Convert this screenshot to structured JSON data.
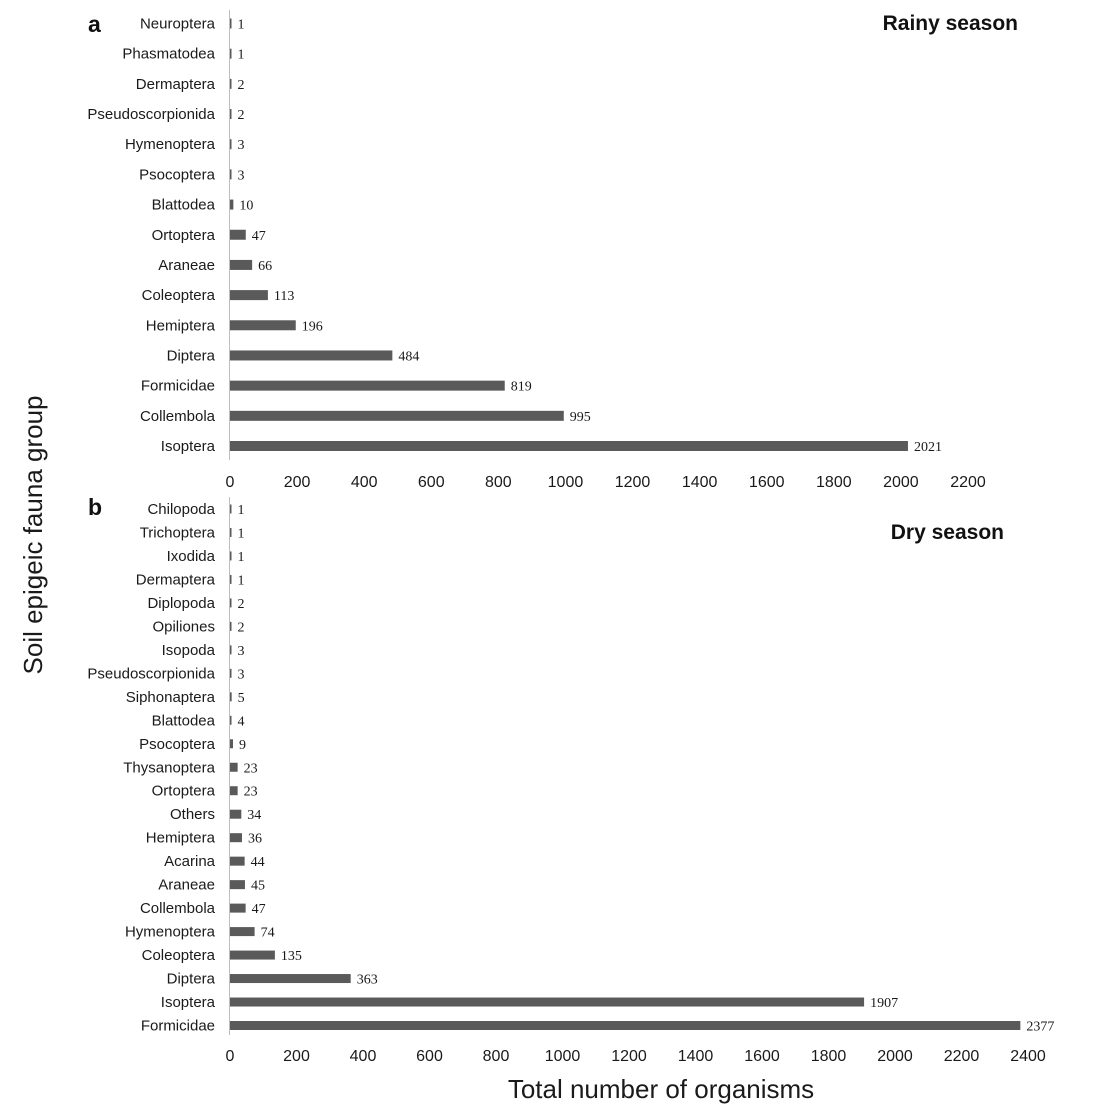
{
  "colors": {
    "bar": "#5a5a5a",
    "axis": "#bdbdbd",
    "text": "#1a1a1a"
  },
  "ylabel": "Soil epigeic fauna group",
  "xlabel": "Total number of organisms",
  "chart_data": [
    {
      "type": "bar",
      "orientation": "horizontal",
      "panel_label": "a",
      "title": "Rainy season",
      "categories": [
        "Neuroptera",
        "Phasmatodea",
        "Dermaptera",
        "Pseudoscorpionida",
        "Hymenoptera",
        "Psocoptera",
        "Blattodea",
        "Ortoptera",
        "Araneae",
        "Coleoptera",
        "Hemiptera",
        "Diptera",
        "Formicidae",
        "Collembola",
        "Isoptera"
      ],
      "values": [
        1,
        1,
        2,
        2,
        3,
        3,
        10,
        47,
        66,
        113,
        196,
        484,
        819,
        995,
        2021
      ],
      "value_labels": [
        "1",
        "1",
        "2",
        "2",
        "3",
        "3",
        "10",
        "47",
        "66",
        "113",
        "196",
        "484",
        "819",
        "995",
        "2021"
      ],
      "xlim": [
        0,
        2200
      ],
      "xticks": [
        "0",
        "200",
        "400",
        "600",
        "800",
        "1000",
        "1200",
        "1400",
        "1600",
        "1800",
        "2000",
        "2200"
      ],
      "grid": false
    },
    {
      "type": "bar",
      "orientation": "horizontal",
      "panel_label": "b",
      "title": "Dry season",
      "categories": [
        "Chilopoda",
        "Trichoptera",
        "Ixodida",
        "Dermaptera",
        "Diplopoda",
        "Opiliones",
        "Isopoda",
        "Pseudoscorpionida",
        "Siphonaptera",
        "Blattodea",
        "Psocoptera",
        "Thysanoptera",
        "Ortoptera",
        "Others",
        "Hemiptera",
        "Acarina",
        "Araneae",
        "Collembola",
        "Hymenoptera",
        "Coleoptera",
        "Diptera",
        "Isoptera",
        "Formicidae"
      ],
      "values": [
        1,
        1,
        1,
        1,
        2,
        2,
        3,
        3,
        5,
        4,
        9,
        23,
        23,
        34,
        36,
        44,
        45,
        47,
        74,
        135,
        363,
        1907,
        2377
      ],
      "value_labels": [
        "1",
        "1",
        "1",
        "1",
        "2",
        "2",
        "3",
        "3",
        "5",
        "4",
        "9",
        "23",
        "23",
        "34",
        "36",
        "44",
        "45",
        "47",
        "74",
        "135",
        "363",
        "1907",
        "2377"
      ],
      "xlim": [
        0,
        2400
      ],
      "xticks": [
        "0",
        "200",
        "400",
        "600",
        "800",
        "1000",
        "1200",
        "1400",
        "1600",
        "1800",
        "2000",
        "2200",
        "2400"
      ],
      "grid": false
    }
  ]
}
